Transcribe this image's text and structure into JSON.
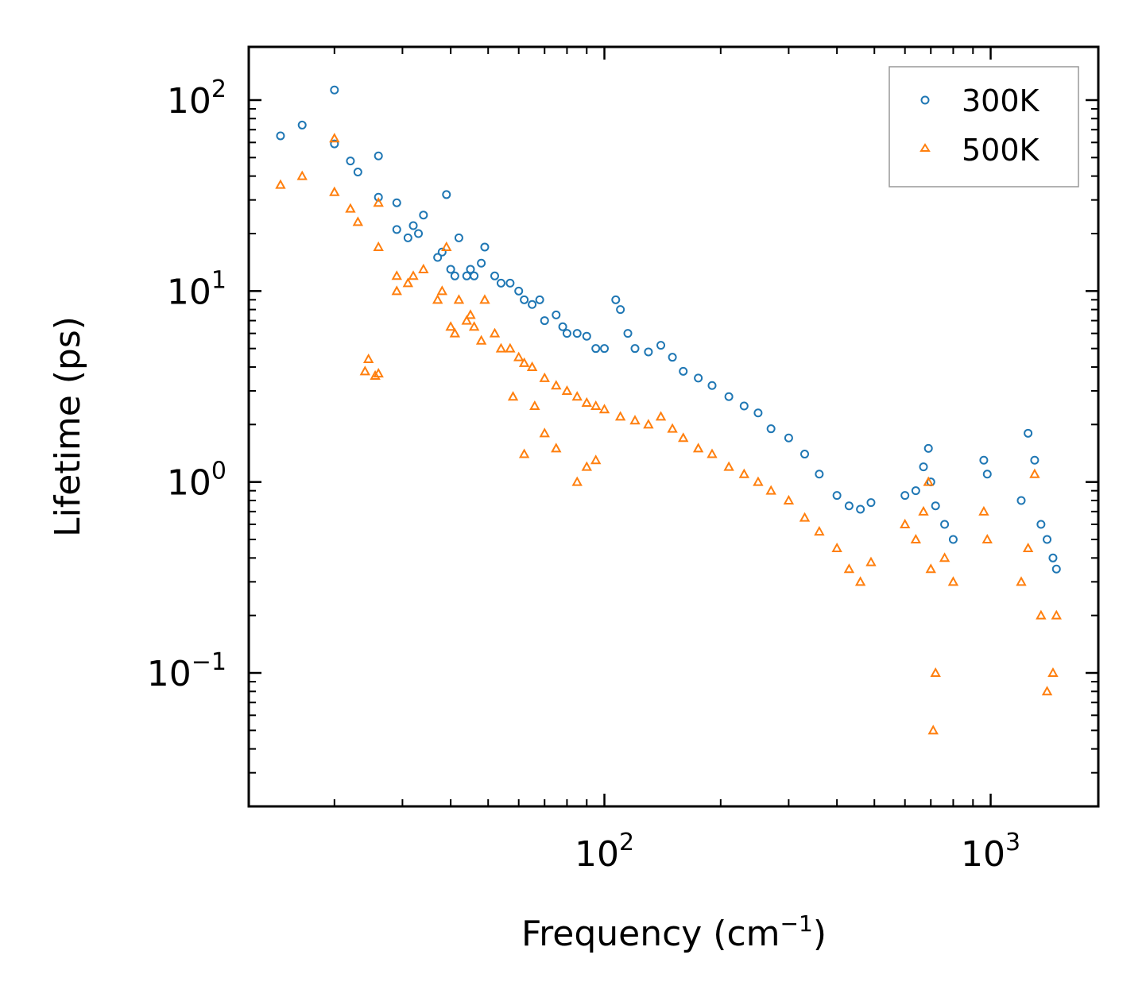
{
  "chart_data": {
    "type": "scatter",
    "xscale": "log",
    "yscale": "log",
    "xlim": [
      12,
      1900
    ],
    "ylim": [
      0.02,
      190
    ],
    "xlabel": {
      "main": "Frequency (cm",
      "sup": "−1",
      "close": ")"
    },
    "ylabel": "Lifetime (ps)",
    "x_ticks": [
      {
        "value": 100,
        "base": "10",
        "exp": "2"
      },
      {
        "value": 1000,
        "base": "10",
        "exp": "3"
      }
    ],
    "y_ticks": [
      {
        "value": 0.1,
        "base": "10",
        "exp": "−1"
      },
      {
        "value": 1,
        "base": "10",
        "exp": "0"
      },
      {
        "value": 10,
        "base": "10",
        "exp": "1"
      },
      {
        "value": 100,
        "base": "10",
        "exp": "2"
      }
    ],
    "legend_position": "top-right",
    "series": [
      {
        "name": "300K",
        "marker": "circle",
        "color": "#1f77b4",
        "points": [
          [
            14.5,
            65
          ],
          [
            16.5,
            74
          ],
          [
            20,
            113
          ],
          [
            20,
            59
          ],
          [
            22,
            48
          ],
          [
            23,
            42
          ],
          [
            26,
            51
          ],
          [
            26,
            31
          ],
          [
            29,
            29
          ],
          [
            29,
            21
          ],
          [
            31,
            19
          ],
          [
            32,
            22
          ],
          [
            33,
            20
          ],
          [
            34,
            25
          ],
          [
            37,
            15
          ],
          [
            38,
            16
          ],
          [
            39,
            32
          ],
          [
            40,
            13
          ],
          [
            41,
            12
          ],
          [
            42,
            19
          ],
          [
            44,
            12
          ],
          [
            45,
            13
          ],
          [
            46,
            12
          ],
          [
            48,
            14
          ],
          [
            49,
            17
          ],
          [
            52,
            12
          ],
          [
            54,
            11
          ],
          [
            57,
            11
          ],
          [
            60,
            10
          ],
          [
            62,
            9
          ],
          [
            65,
            8.5
          ],
          [
            68,
            9
          ],
          [
            70,
            7
          ],
          [
            75,
            7.5
          ],
          [
            78,
            6.5
          ],
          [
            80,
            6
          ],
          [
            85,
            6
          ],
          [
            90,
            5.8
          ],
          [
            95,
            5
          ],
          [
            100,
            5
          ],
          [
            107,
            9
          ],
          [
            110,
            8
          ],
          [
            115,
            6
          ],
          [
            120,
            5
          ],
          [
            130,
            4.8
          ],
          [
            140,
            5.2
          ],
          [
            150,
            4.5
          ],
          [
            160,
            3.8
          ],
          [
            175,
            3.5
          ],
          [
            190,
            3.2
          ],
          [
            210,
            2.8
          ],
          [
            230,
            2.5
          ],
          [
            250,
            2.3
          ],
          [
            270,
            1.9
          ],
          [
            300,
            1.7
          ],
          [
            330,
            1.4
          ],
          [
            360,
            1.1
          ],
          [
            400,
            0.85
          ],
          [
            430,
            0.75
          ],
          [
            460,
            0.72
          ],
          [
            490,
            0.78
          ],
          [
            600,
            0.85
          ],
          [
            640,
            0.9
          ],
          [
            670,
            1.2
          ],
          [
            690,
            1.5
          ],
          [
            700,
            1.0
          ],
          [
            720,
            0.75
          ],
          [
            760,
            0.6
          ],
          [
            800,
            0.5
          ],
          [
            960,
            1.3
          ],
          [
            980,
            1.1
          ],
          [
            1200,
            0.8
          ],
          [
            1250,
            1.8
          ],
          [
            1300,
            1.3
          ],
          [
            1350,
            0.6
          ],
          [
            1400,
            0.5
          ],
          [
            1450,
            0.4
          ],
          [
            1480,
            0.35
          ]
        ]
      },
      {
        "name": "500K",
        "marker": "triangle",
        "color": "#ff7f0e",
        "points": [
          [
            14.5,
            36
          ],
          [
            16.5,
            40
          ],
          [
            20,
            63
          ],
          [
            20,
            33
          ],
          [
            22,
            27
          ],
          [
            23,
            23
          ],
          [
            26,
            29
          ],
          [
            26,
            17
          ],
          [
            24.5,
            4.4
          ],
          [
            24,
            3.8
          ],
          [
            25.5,
            3.6
          ],
          [
            26,
            3.7
          ],
          [
            29,
            12
          ],
          [
            29,
            10
          ],
          [
            31,
            11
          ],
          [
            32,
            12
          ],
          [
            34,
            13
          ],
          [
            37,
            9
          ],
          [
            38,
            10
          ],
          [
            39,
            17
          ],
          [
            40,
            6.5
          ],
          [
            41,
            6
          ],
          [
            42,
            9
          ],
          [
            44,
            7
          ],
          [
            45,
            7.5
          ],
          [
            46,
            6.5
          ],
          [
            48,
            5.5
          ],
          [
            49,
            9
          ],
          [
            52,
            6
          ],
          [
            54,
            5
          ],
          [
            57,
            5
          ],
          [
            60,
            4.5
          ],
          [
            62,
            4.2
          ],
          [
            65,
            4
          ],
          [
            70,
            3.5
          ],
          [
            75,
            3.2
          ],
          [
            80,
            3
          ],
          [
            85,
            2.8
          ],
          [
            90,
            2.6
          ],
          [
            95,
            2.5
          ],
          [
            100,
            2.4
          ],
          [
            110,
            2.2
          ],
          [
            120,
            2.1
          ],
          [
            130,
            2.0
          ],
          [
            140,
            2.2
          ],
          [
            150,
            1.9
          ],
          [
            160,
            1.7
          ],
          [
            175,
            1.5
          ],
          [
            190,
            1.4
          ],
          [
            210,
            1.2
          ],
          [
            230,
            1.1
          ],
          [
            250,
            1.0
          ],
          [
            270,
            0.9
          ],
          [
            300,
            0.8
          ],
          [
            330,
            0.65
          ],
          [
            360,
            0.55
          ],
          [
            400,
            0.45
          ],
          [
            430,
            0.35
          ],
          [
            460,
            0.3
          ],
          [
            490,
            0.38
          ],
          [
            600,
            0.6
          ],
          [
            640,
            0.5
          ],
          [
            670,
            0.7
          ],
          [
            690,
            1.0
          ],
          [
            700,
            0.35
          ],
          [
            710,
            0.05
          ],
          [
            720,
            0.1
          ],
          [
            760,
            0.4
          ],
          [
            800,
            0.3
          ],
          [
            960,
            0.7
          ],
          [
            980,
            0.5
          ],
          [
            1200,
            0.3
          ],
          [
            1250,
            0.45
          ],
          [
            1300,
            1.1
          ],
          [
            1350,
            0.2
          ],
          [
            1400,
            0.08
          ],
          [
            1450,
            0.1
          ],
          [
            1480,
            0.2
          ],
          [
            62,
            1.4
          ],
          [
            70,
            1.8
          ],
          [
            75,
            1.5
          ],
          [
            85,
            1.0
          ],
          [
            90,
            1.2
          ],
          [
            95,
            1.3
          ],
          [
            58,
            2.8
          ],
          [
            66,
            2.5
          ]
        ]
      }
    ]
  }
}
